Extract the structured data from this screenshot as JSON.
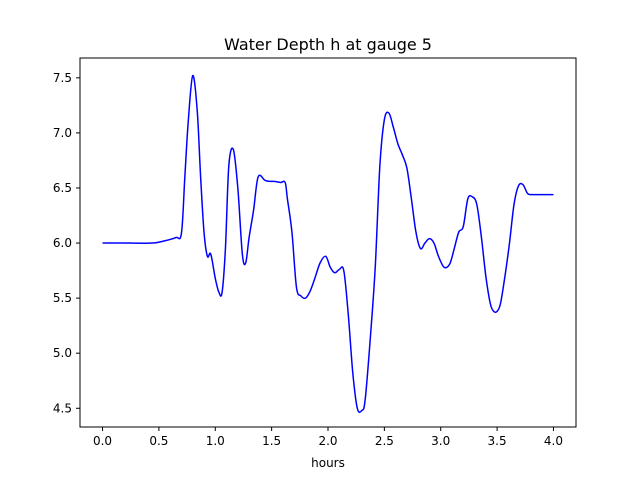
{
  "chart_data": {
    "type": "line",
    "title": "Water Depth h at gauge 5",
    "xlabel": "hours",
    "ylabel": "",
    "xlim": [
      -0.2,
      4.2
    ],
    "ylim": [
      4.33,
      7.68
    ],
    "grid": false,
    "legend": "none",
    "x_ticks": [
      0.0,
      0.5,
      1.0,
      1.5,
      2.0,
      2.5,
      3.0,
      3.5,
      4.0
    ],
    "x_tick_labels": [
      "0.0",
      "0.5",
      "1.0",
      "1.5",
      "2.0",
      "2.5",
      "3.0",
      "3.5",
      "4.0"
    ],
    "y_ticks": [
      4.5,
      5.0,
      5.5,
      6.0,
      6.5,
      7.0,
      7.5
    ],
    "y_tick_labels": [
      "4.5",
      "5.0",
      "5.5",
      "6.0",
      "6.5",
      "7.0",
      "7.5"
    ],
    "series": [
      {
        "color": "#0000ff",
        "x": [
          0.0,
          0.2,
          0.44,
          0.55,
          0.65,
          0.7,
          0.73,
          0.76,
          0.8,
          0.84,
          0.87,
          0.9,
          0.93,
          0.96,
          1.0,
          1.03,
          1.06,
          1.09,
          1.12,
          1.16,
          1.2,
          1.24,
          1.27,
          1.3,
          1.34,
          1.38,
          1.44,
          1.48,
          1.52,
          1.58,
          1.62,
          1.64,
          1.68,
          1.72,
          1.76,
          1.8,
          1.84,
          1.88,
          1.93,
          1.98,
          2.02,
          2.06,
          2.1,
          2.14,
          2.18,
          2.22,
          2.26,
          2.3,
          2.33,
          2.38,
          2.42,
          2.46,
          2.5,
          2.54,
          2.58,
          2.62,
          2.66,
          2.7,
          2.74,
          2.78,
          2.82,
          2.86,
          2.9,
          2.94,
          2.98,
          3.03,
          3.08,
          3.12,
          3.16,
          3.2,
          3.24,
          3.28,
          3.32,
          3.36,
          3.4,
          3.44,
          3.47,
          3.5,
          3.53,
          3.57,
          3.61,
          3.65,
          3.69,
          3.73,
          3.77,
          3.81,
          3.85,
          3.89,
          3.92,
          3.95,
          3.98,
          4.0
        ],
        "y": [
          6.0,
          6.0,
          6.0,
          6.02,
          6.05,
          6.09,
          6.6,
          7.1,
          7.52,
          7.2,
          6.6,
          6.1,
          5.88,
          5.9,
          5.68,
          5.56,
          5.55,
          5.95,
          6.7,
          6.85,
          6.5,
          5.9,
          5.82,
          6.05,
          6.3,
          6.6,
          6.57,
          6.56,
          6.56,
          6.55,
          6.55,
          6.4,
          6.1,
          5.6,
          5.52,
          5.5,
          5.56,
          5.67,
          5.82,
          5.88,
          5.78,
          5.73,
          5.76,
          5.75,
          5.35,
          4.82,
          4.5,
          4.48,
          4.58,
          5.2,
          5.8,
          6.7,
          7.12,
          7.18,
          7.05,
          6.9,
          6.8,
          6.68,
          6.4,
          6.1,
          5.95,
          6.0,
          6.04,
          6.0,
          5.88,
          5.78,
          5.81,
          5.95,
          6.1,
          6.15,
          6.4,
          6.42,
          6.35,
          6.06,
          5.7,
          5.45,
          5.38,
          5.38,
          5.45,
          5.7,
          6.0,
          6.35,
          6.52,
          6.53,
          6.45,
          6.44,
          6.44,
          6.44,
          6.44,
          6.44,
          6.44,
          6.44
        ]
      }
    ]
  }
}
